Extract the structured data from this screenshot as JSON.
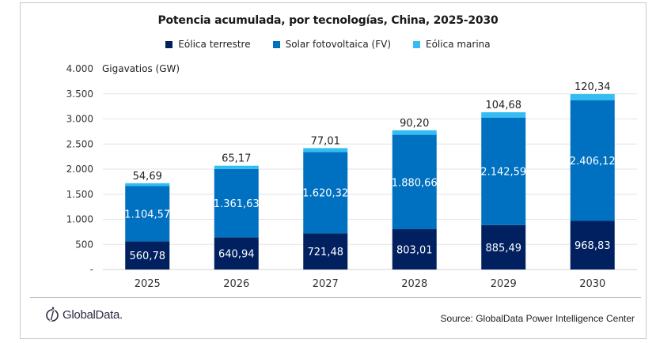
{
  "chart_data": {
    "type": "bar",
    "stacked": true,
    "title": "Potencia acumulada, por tecnologías, China, 2025-2030",
    "ylabel": "Gigavatios (GW)",
    "xlabel": "",
    "categories": [
      "2025",
      "2026",
      "2027",
      "2028",
      "2029",
      "2030"
    ],
    "series": [
      {
        "name": "Eólica terrestre",
        "color": "#002060",
        "values": [
          560.78,
          640.94,
          721.48,
          803.01,
          885.49,
          968.83
        ],
        "labels": [
          "560,78",
          "640,94",
          "721,48",
          "803,01",
          "885,49",
          "968,83"
        ]
      },
      {
        "name": "Solar fotovoltaica (FV)",
        "color": "#0070C0",
        "values": [
          1104.57,
          1361.63,
          1620.32,
          1880.66,
          2142.59,
          2406.12
        ],
        "labels": [
          "1.104,57",
          "1.361,63",
          "1.620,32",
          "1.880,66",
          "2.142,59",
          "2.406,12"
        ]
      },
      {
        "name": "Eólica marina",
        "color": "#33BDF2",
        "values": [
          54.69,
          65.17,
          77.01,
          90.2,
          104.68,
          120.34
        ],
        "labels": [
          "54,69",
          "65,17",
          "77,01",
          "90,20",
          "104,68",
          "120,34"
        ]
      }
    ],
    "ylim": [
      0,
      4000
    ],
    "yticks": [
      0,
      500,
      1000,
      1500,
      2000,
      2500,
      3000,
      3500,
      4000
    ],
    "ytick_labels": [
      "-",
      "500",
      "1.000",
      "1.500",
      "2.000",
      "2.500",
      "3.000",
      "3.500",
      "4.000"
    ],
    "grid": true,
    "legend_position": "top"
  },
  "footer": {
    "logo_text": "GlobalData.",
    "source": "Source: GlobalData Power Intelligence Center"
  }
}
